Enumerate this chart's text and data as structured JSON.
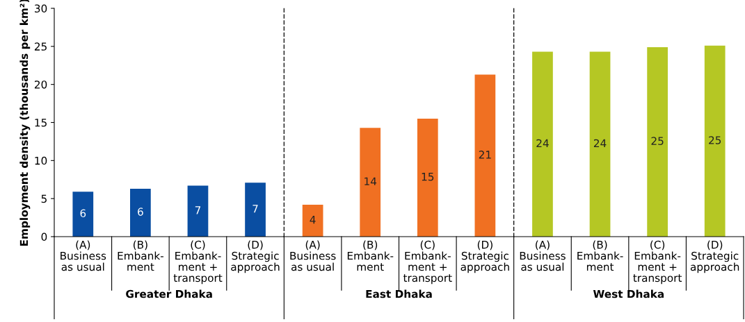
{
  "chart_data": [
    {
      "type": "bar",
      "xlabel": "Greater Dhaka",
      "ylabel": "Employment density (thousands per km²)",
      "categories": [
        "(A)\nBusiness\nas usual",
        "(B)\nEmbank-\nment",
        "(C)\nEmbank-\nment +\ntransport",
        "(D)\nStrategic\napproach"
      ],
      "series": [
        {
          "color": "#0a4ea2",
          "values": [
            5.9,
            6.3,
            6.7,
            7.1
          ],
          "value_labels": [
            "6",
            "6",
            "7",
            "7"
          ]
        }
      ],
      "ylim": [
        0,
        30
      ],
      "yticks": [
        0,
        5,
        10,
        15,
        20,
        25,
        30
      ],
      "grid": false,
      "legend": false
    },
    {
      "type": "bar",
      "xlabel": "East Dhaka",
      "categories": [
        "(A)\nBusiness\nas usual",
        "(B)\nEmbank-\nment",
        "(C)\nEmbank-\nment +\ntransport",
        "(D)\nStrategic\napproach"
      ],
      "series": [
        {
          "color": "#f07022",
          "values": [
            4.2,
            14.3,
            15.5,
            21.3
          ],
          "value_labels": [
            "4",
            "14",
            "15",
            "21"
          ]
        }
      ],
      "ylim": [
        0,
        30
      ],
      "tick_labels": "x",
      "grid": false,
      "legend": false
    },
    {
      "type": "bar",
      "xlabel": "West Dhaka",
      "categories": [
        "(A)\nBusiness\nas usual",
        "(B)\nEmbank-\nment",
        "(C)\nEmbank-\nment +\ntransport",
        "(D)\nStrategic\napproach"
      ],
      "series": [
        {
          "color": "#b5c724",
          "values": [
            24.3,
            24.3,
            24.9,
            25.1
          ],
          "value_labels": [
            "24",
            "24",
            "25",
            "25"
          ]
        }
      ],
      "ylim": [
        0,
        30
      ],
      "tick_labels": "x",
      "grid": false,
      "legend": false
    }
  ]
}
